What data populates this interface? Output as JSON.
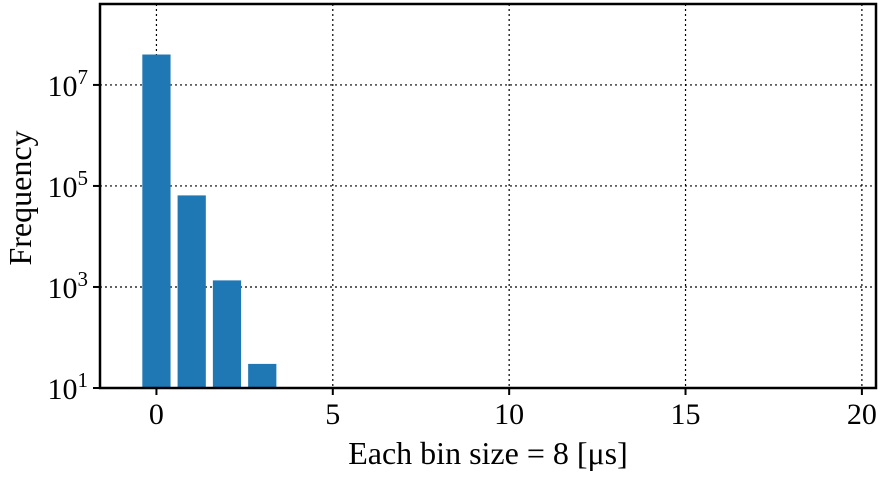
{
  "chart_data": {
    "type": "bar",
    "title": "",
    "xlabel": "Each bin size = 8 [μs]",
    "ylabel": "Frequency",
    "x": [
      0,
      1,
      2,
      3
    ],
    "values": [
      40000000,
      65000.0,
      1350,
      30
    ],
    "xlim": [
      -1.6,
      20.4
    ],
    "ylim": [
      10,
      400000000
    ],
    "yscale": "log",
    "xticks": [
      0,
      5,
      10,
      15,
      20
    ],
    "xtick_labels": [
      "0",
      "5",
      "10",
      "15",
      "20"
    ],
    "yticks": [
      10,
      1000,
      100000,
      10000000
    ],
    "ytick_labels": [
      {
        "base": "10",
        "exp": "1"
      },
      {
        "base": "10",
        "exp": "3"
      },
      {
        "base": "10",
        "exp": "5"
      },
      {
        "base": "10",
        "exp": "7"
      }
    ],
    "grid": true,
    "bar_color": "#1f77b4",
    "bar_width": 0.8
  }
}
